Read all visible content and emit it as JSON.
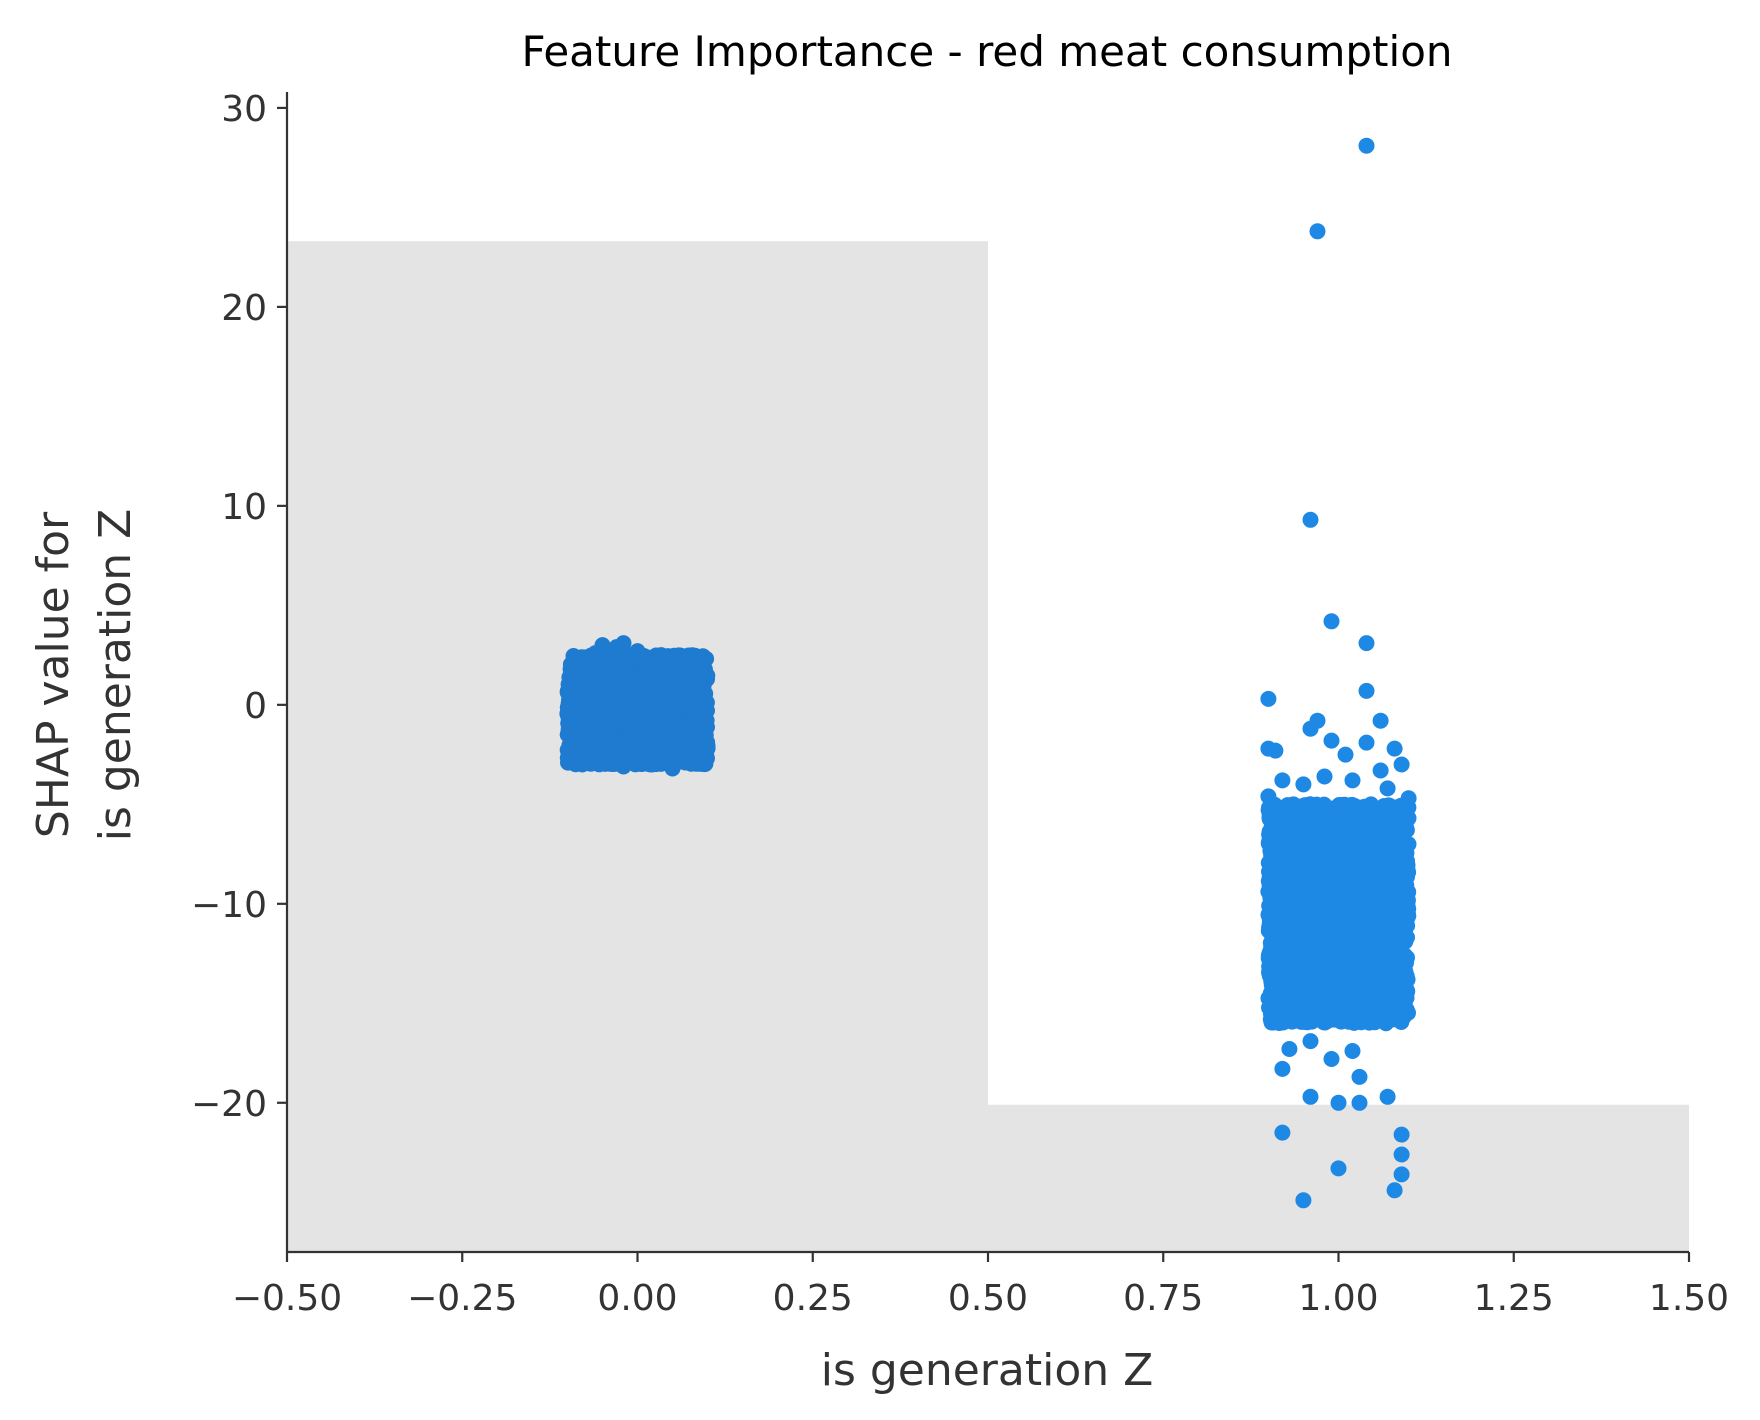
{
  "chart_data": {
    "type": "scatter",
    "title": "Feature Importance - red meat consumption",
    "xlabel": "is generation Z",
    "ylabel_lines": [
      "SHAP value for",
      "is generation Z"
    ],
    "xlim": [
      -0.5,
      1.5
    ],
    "ylim": [
      -27.5,
      30.8
    ],
    "x_ticks": [
      -0.5,
      -0.25,
      0.0,
      0.25,
      0.5,
      0.75,
      1.0,
      1.25,
      1.5
    ],
    "x_tick_labels": [
      "−0.50",
      "−0.25",
      "0.00",
      "0.25",
      "0.50",
      "0.75",
      "1.00",
      "1.25",
      "1.50"
    ],
    "y_ticks": [
      -20,
      -10,
      0,
      10,
      20,
      30
    ],
    "y_tick_labels": [
      "−20",
      "−10",
      "0",
      "10",
      "20",
      "30"
    ],
    "grid": false,
    "background_bands": [
      {
        "x_from": -0.5,
        "x_to": 0.5,
        "y_from": -27.5,
        "y_to": 23.3
      },
      {
        "x_from": 0.5,
        "x_to": 1.5,
        "y_from": -27.5,
        "y_to": -20.1
      }
    ],
    "colors": {
      "band": "#e4e4e4",
      "point_group_0": "#1e7bd0",
      "point_group_1": "#1e88e5",
      "axis": "#333333"
    },
    "clusters": [
      {
        "x_center": 0.0,
        "x_jitter": 0.1,
        "y_min": -3.0,
        "y_max": 2.5
      },
      {
        "x_center": 1.0,
        "x_jitter": 0.1,
        "y_min": -16.0,
        "y_max": -5.0
      }
    ],
    "series": [
      {
        "values": [
          [
            1.04,
            28.1
          ],
          [
            0.97,
            23.8
          ],
          [
            0.96,
            9.3
          ],
          [
            0.99,
            4.2
          ],
          [
            1.04,
            3.1
          ],
          [
            1.04,
            0.7
          ],
          [
            0.9,
            0.3
          ],
          [
            1.06,
            -0.8
          ],
          [
            0.97,
            -0.8
          ],
          [
            0.96,
            -1.2
          ],
          [
            0.99,
            -1.8
          ],
          [
            1.04,
            -1.9
          ],
          [
            0.9,
            -2.2
          ],
          [
            0.91,
            -2.3
          ],
          [
            1.08,
            -2.2
          ],
          [
            1.01,
            -2.5
          ],
          [
            1.06,
            -3.3
          ],
          [
            0.98,
            -3.6
          ],
          [
            0.92,
            -3.8
          ],
          [
            1.02,
            -3.8
          ],
          [
            0.95,
            -4.0
          ],
          [
            1.09,
            -3.0
          ],
          [
            1.07,
            -4.2
          ],
          [
            0.9,
            -4.6
          ],
          [
            1.1,
            -4.7
          ],
          [
            0.96,
            -16.9
          ],
          [
            0.93,
            -17.3
          ],
          [
            1.02,
            -17.4
          ],
          [
            0.99,
            -17.8
          ],
          [
            0.92,
            -18.3
          ],
          [
            1.03,
            -18.7
          ],
          [
            0.96,
            -19.7
          ],
          [
            1.07,
            -19.7
          ],
          [
            1.0,
            -20.0
          ],
          [
            1.03,
            -20.0
          ],
          [
            0.92,
            -21.5
          ],
          [
            1.09,
            -21.6
          ],
          [
            1.09,
            -22.6
          ],
          [
            1.0,
            -23.3
          ],
          [
            1.09,
            -23.6
          ],
          [
            1.08,
            -24.4
          ],
          [
            0.95,
            -24.9
          ],
          [
            -0.05,
            3.0
          ],
          [
            -0.02,
            3.1
          ],
          [
            -0.03,
            2.9
          ],
          [
            0.0,
            2.7
          ],
          [
            -0.06,
            2.6
          ],
          [
            -0.02,
            -3.1
          ],
          [
            0.05,
            -3.2
          ],
          [
            0.02,
            -3.0
          ],
          [
            -0.08,
            -2.9
          ],
          [
            0.09,
            -2.8
          ]
        ]
      }
    ]
  }
}
